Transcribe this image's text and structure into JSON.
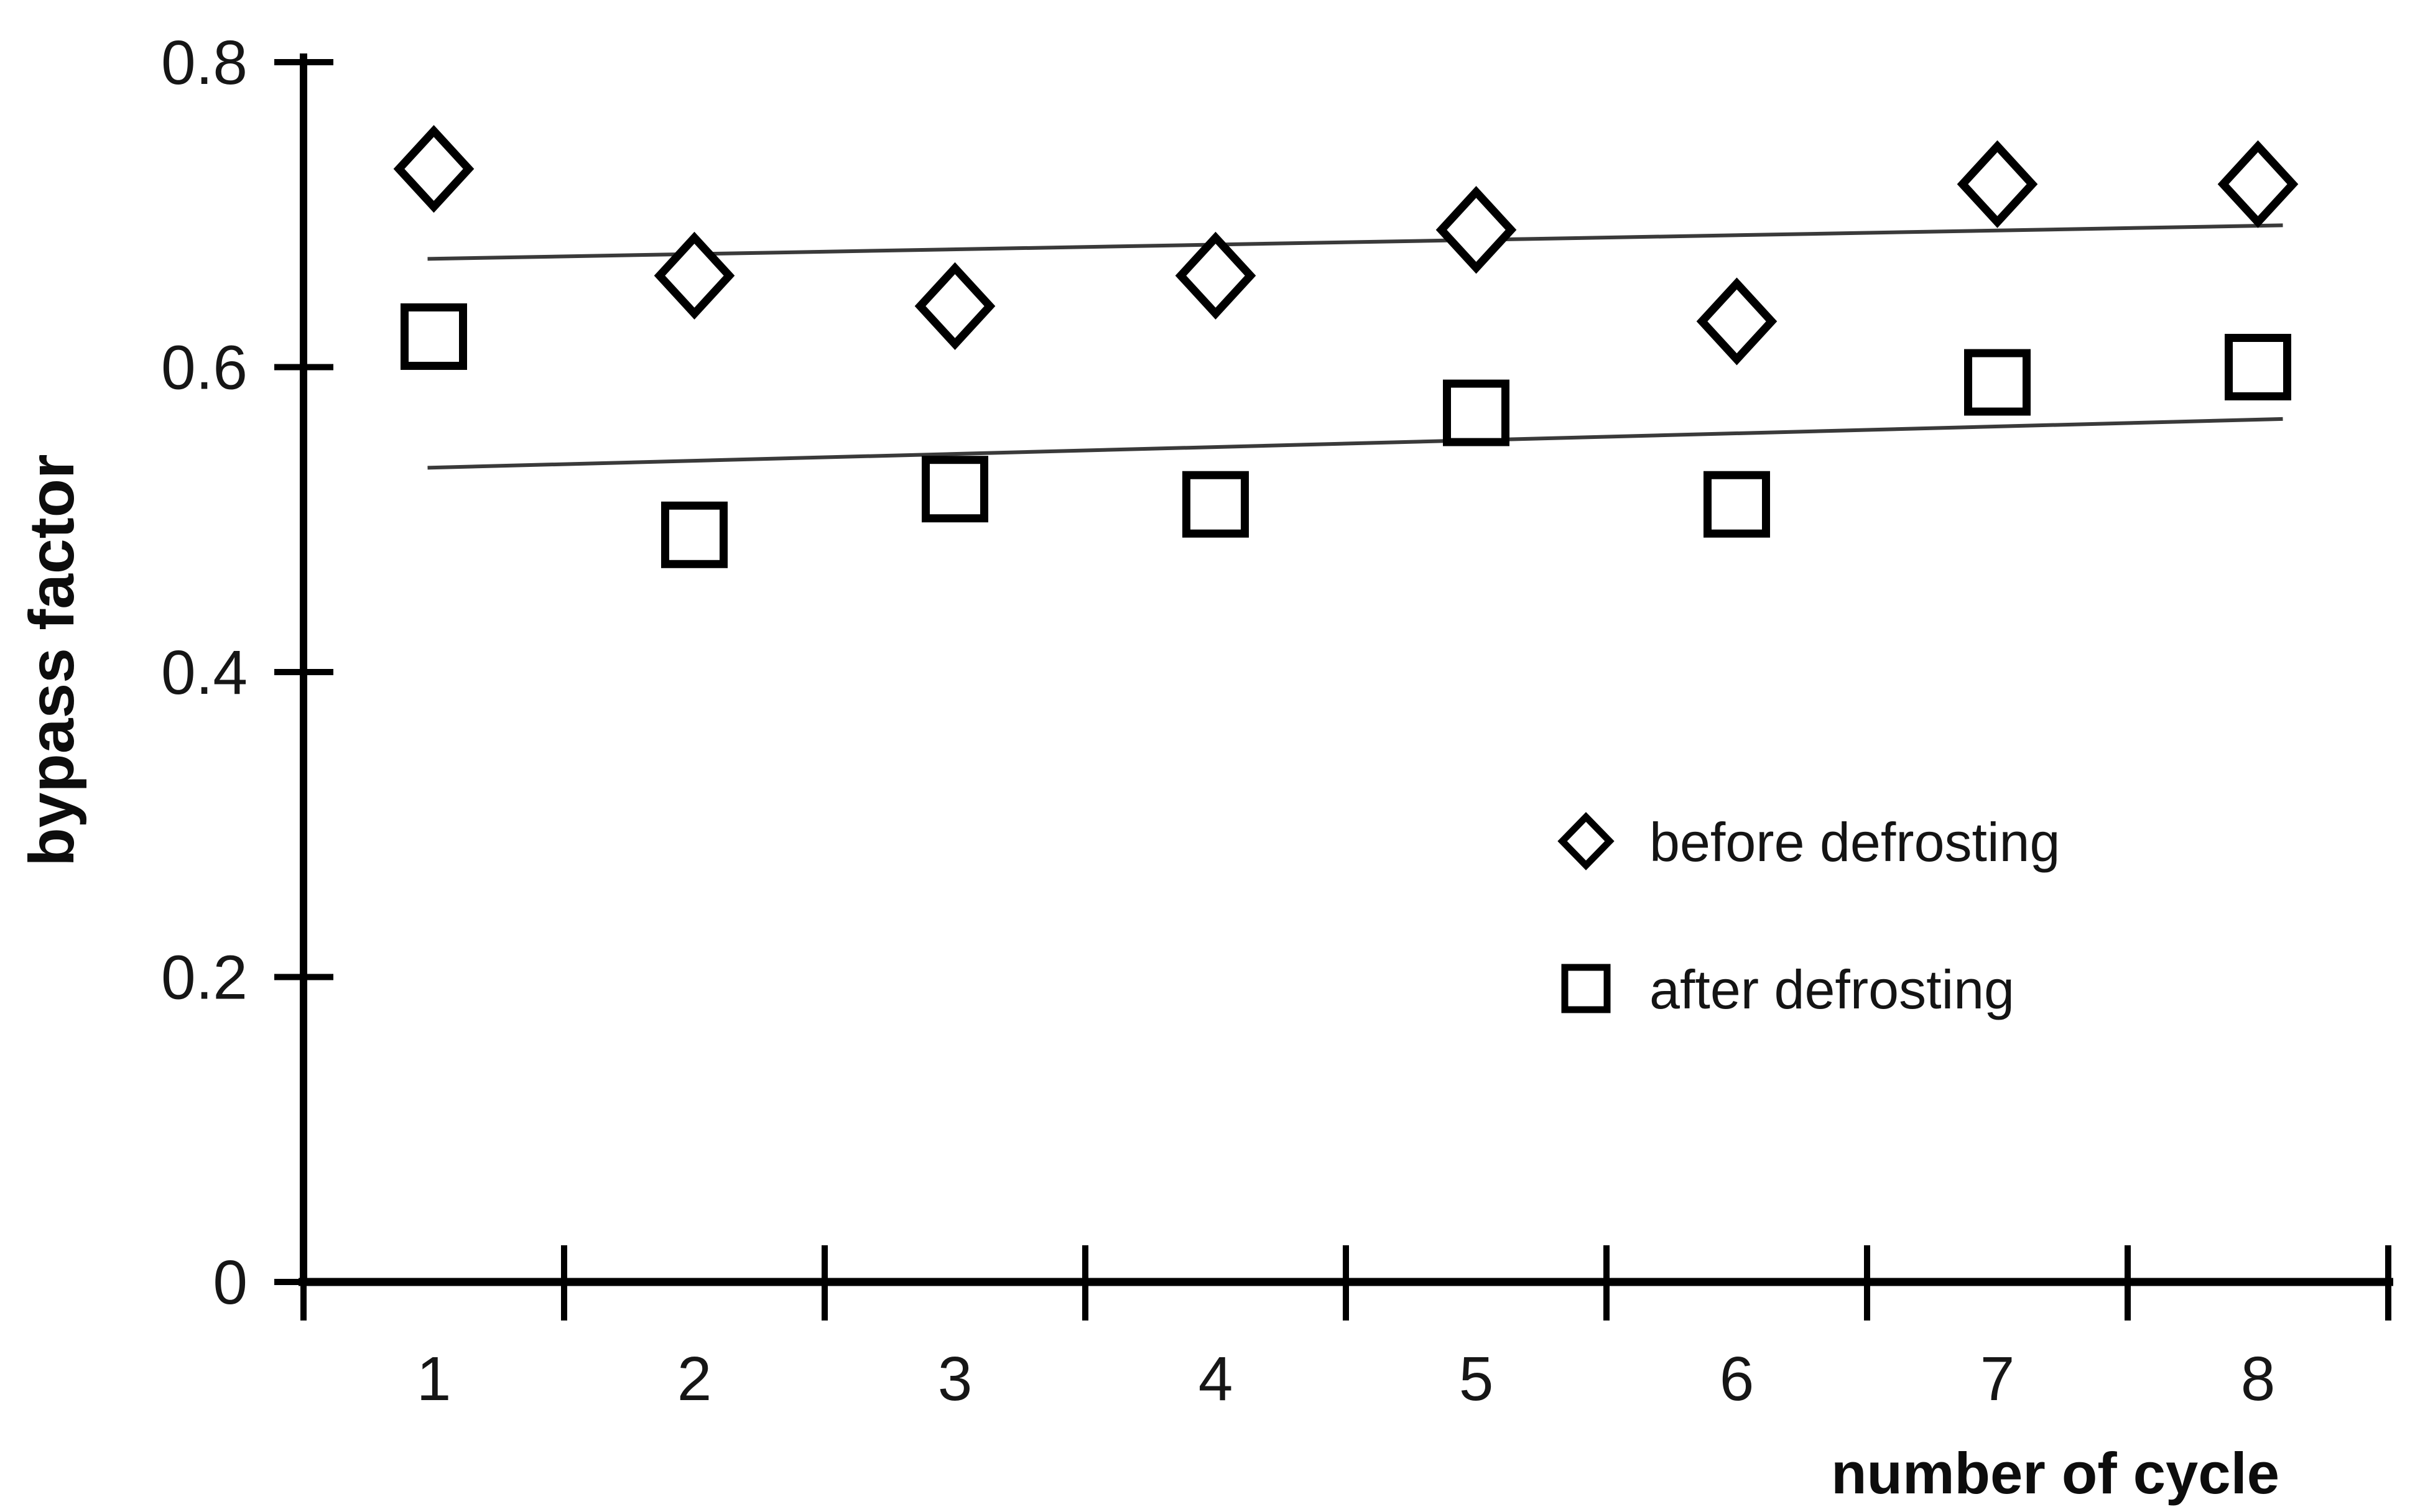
{
  "chart_data": {
    "type": "scatter",
    "title": "",
    "xlabel": "number of cycle",
    "ylabel": "bypass factor",
    "x": [
      1,
      2,
      3,
      4,
      5,
      6,
      7,
      8
    ],
    "x_tick_labels": [
      "1",
      "2",
      "3",
      "4",
      "5",
      "6",
      "7",
      "8"
    ],
    "y_ticks": [
      0,
      0.2,
      0.4,
      0.6,
      0.8
    ],
    "y_tick_labels": [
      "0",
      "0.2",
      "0.4",
      "0.6",
      "0.8"
    ],
    "xlim": [
      0.5,
      8.5
    ],
    "ylim": [
      0,
      0.8
    ],
    "grid": false,
    "legend_position": "center-right-inside",
    "series": [
      {
        "name": "before defrosting",
        "marker": "diamond",
        "values": [
          0.73,
          0.66,
          0.64,
          0.66,
          0.69,
          0.63,
          0.72,
          0.72
        ]
      },
      {
        "name": "after defrosting",
        "marker": "square",
        "values": [
          0.62,
          0.49,
          0.52,
          0.51,
          0.57,
          0.51,
          0.59,
          0.6
        ]
      }
    ],
    "trendlines": [
      {
        "series": "before defrosting",
        "start": {
          "x": 1,
          "y": 0.671
        },
        "end": {
          "x": 8,
          "y": 0.693
        }
      },
      {
        "series": "after defrosting",
        "start": {
          "x": 1,
          "y": 0.534
        },
        "end": {
          "x": 8,
          "y": 0.566
        }
      }
    ],
    "colors": {
      "axis": "#000000",
      "marker_stroke": "#000000",
      "marker_fill": "#ffffff",
      "trendline": "#3a3a3a",
      "text": "#161616",
      "background": "#ffffff"
    }
  }
}
